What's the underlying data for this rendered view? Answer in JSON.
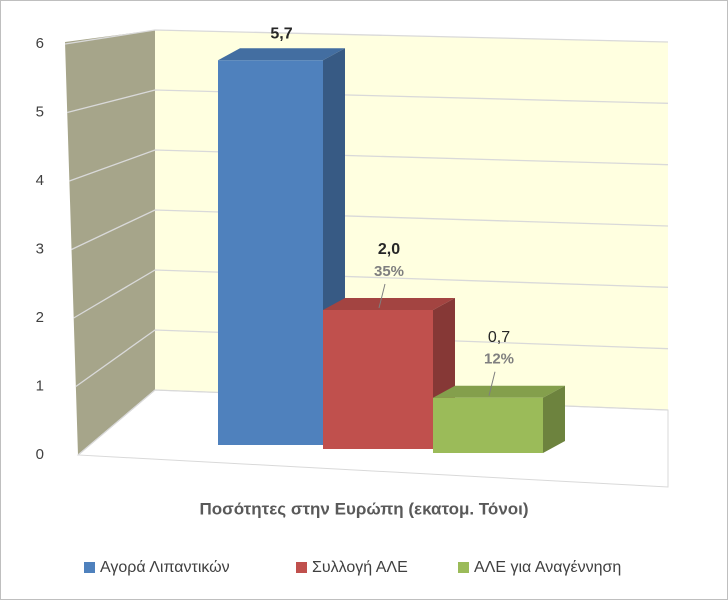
{
  "chart_data": {
    "type": "bar3d",
    "x_label": "Ποσότητες στην Ευρώπη (εκατομ. Τόνοι)",
    "categories": [
      "Αγορά Λιπαντικών",
      "Συλλογή ΑΛΕ",
      "ΑΛΕ για Αναγέννηση"
    ],
    "values": [
      5.7,
      2.0,
      0.7
    ],
    "value_labels": [
      "5,7",
      "2,0",
      "0,7"
    ],
    "shares": [
      null,
      35,
      12
    ],
    "share_labels": [
      null,
      "35%",
      "12%"
    ],
    "colors": [
      "#4f81bd",
      "#c0504d",
      "#9bbb59"
    ],
    "ylim": [
      0,
      6
    ],
    "yticks": [
      0,
      1,
      2,
      3,
      4,
      5,
      6
    ],
    "grid": true,
    "legend": "bottom"
  }
}
